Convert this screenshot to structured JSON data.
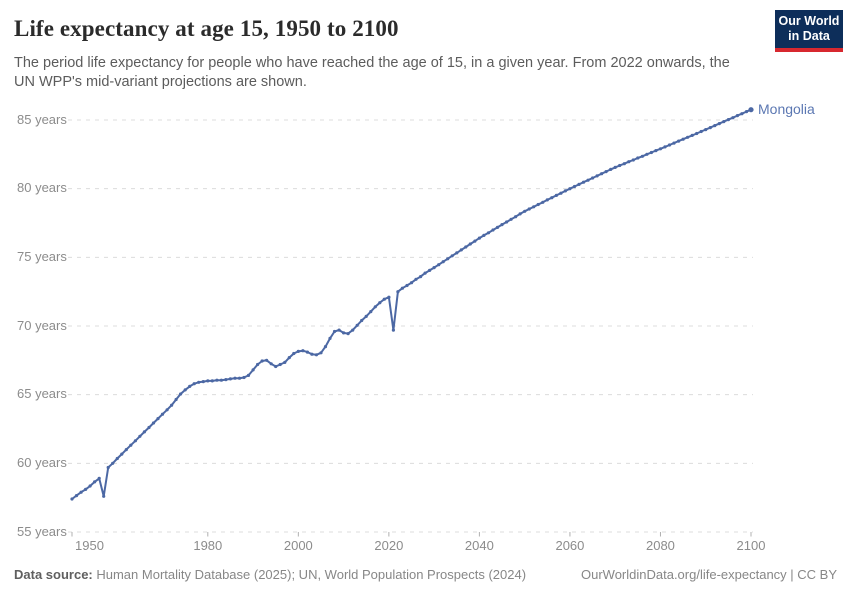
{
  "logo": {
    "line1": "Our World",
    "line2": "in Data"
  },
  "footer": {
    "source_label": "Data source:",
    "source_text": " Human Mortality Database (2025); UN, World Population Prospects (2024)",
    "credit": "OurWorldinData.org/life-expectancy | CC BY"
  },
  "colors": {
    "line": "#4c68a4",
    "entity_label": "#5b77b2",
    "grid": "#dcdcdc",
    "tick": "#b0b0b0",
    "axis_text": "#8c8c8c",
    "title_text": "#2b2b2b",
    "subtitle_text": "#5c5c5c",
    "footer_text": "#878787",
    "footer_label": "#5f5f5f",
    "logo_bg": "#0d2e5a",
    "logo_stripe": "#d7282f",
    "logo_text": "#ffffff"
  },
  "chart_data": {
    "type": "line",
    "title": "Life expectancy at age 15, 1950 to 2100",
    "subtitle": "The period life expectancy for people who have reached the age of 15, in a given year. From 2022 onwards, the UN WPP's mid-variant projections are shown.",
    "entity_label": "Mongolia",
    "xlabel": "",
    "ylabel": "",
    "xlim": [
      1950,
      2100
    ],
    "ylim": [
      55,
      85
    ],
    "x_start": 1950,
    "x_step": 1,
    "x_end": 2100,
    "projection_from": 2022,
    "grid": "horizontal-dashed",
    "legend": "entity label at end of line",
    "xticks": [
      1950,
      1980,
      2000,
      2020,
      2040,
      2060,
      2080,
      2100
    ],
    "yticks": [
      {
        "value": 55,
        "label": "55 years"
      },
      {
        "value": 60,
        "label": "60 years"
      },
      {
        "value": 65,
        "label": "65 years"
      },
      {
        "value": 70,
        "label": "70 years"
      },
      {
        "value": 75,
        "label": "75 years"
      },
      {
        "value": 80,
        "label": "80 years"
      },
      {
        "value": 85,
        "label": "85 years"
      }
    ],
    "series": [
      {
        "name": "Mongolia",
        "color": "#4c68a4",
        "values": [
          57.4,
          57.65,
          57.9,
          58.1,
          58.35,
          58.65,
          58.9,
          57.6,
          59.7,
          60.0,
          60.35,
          60.67,
          61.0,
          61.32,
          61.64,
          61.97,
          62.29,
          62.61,
          62.94,
          63.26,
          63.58,
          63.9,
          64.23,
          64.65,
          65.05,
          65.35,
          65.6,
          65.8,
          65.9,
          65.95,
          66.0,
          66.0,
          66.05,
          66.05,
          66.1,
          66.15,
          66.2,
          66.2,
          66.25,
          66.4,
          66.8,
          67.2,
          67.45,
          67.5,
          67.25,
          67.05,
          67.2,
          67.35,
          67.7,
          68.0,
          68.15,
          68.2,
          68.1,
          67.95,
          67.9,
          68.05,
          68.5,
          69.1,
          69.6,
          69.7,
          69.5,
          69.45,
          69.7,
          70.05,
          70.4,
          70.7,
          71.05,
          71.4,
          71.7,
          71.95,
          72.1,
          69.7,
          72.5,
          72.75,
          72.95,
          73.15,
          73.4,
          73.6,
          73.85,
          74.05,
          74.25,
          74.46,
          74.68,
          74.89,
          75.11,
          75.32,
          75.54,
          75.75,
          75.97,
          76.18,
          76.4,
          76.6,
          76.79,
          76.99,
          77.18,
          77.38,
          77.57,
          77.77,
          77.96,
          78.16,
          78.35,
          78.52,
          78.68,
          78.85,
          79.01,
          79.18,
          79.34,
          79.51,
          79.67,
          79.84,
          80.0,
          80.16,
          80.31,
          80.47,
          80.62,
          80.78,
          80.93,
          81.09,
          81.24,
          81.4,
          81.55,
          81.69,
          81.82,
          81.96,
          82.09,
          82.23,
          82.36,
          82.5,
          82.63,
          82.77,
          82.9,
          83.04,
          83.18,
          83.32,
          83.46,
          83.6,
          83.74,
          83.88,
          84.02,
          84.16,
          84.3,
          84.45,
          84.59,
          84.74,
          84.88,
          85.03,
          85.17,
          85.32,
          85.46,
          85.61,
          85.75
        ]
      }
    ]
  }
}
